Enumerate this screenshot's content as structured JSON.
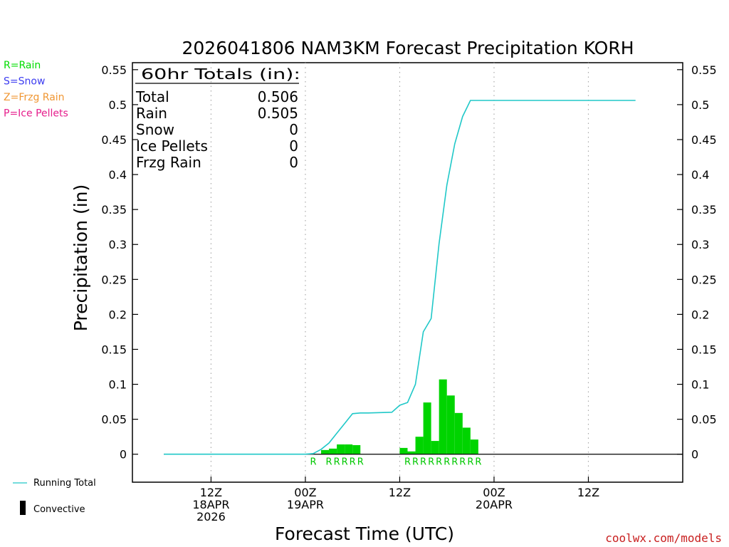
{
  "chart_data": {
    "type": "bar",
    "title": "2026041806 NAM3KM Forecast Precipitation KORH",
    "xlabel": "Forecast Time (UTC)",
    "ylabel": "Precipitation (in)",
    "ylim": [
      -0.04,
      0.56
    ],
    "yticks": [
      0,
      0.05,
      0.1,
      0.15,
      0.2,
      0.25,
      0.3,
      0.35,
      0.4,
      0.45,
      0.5,
      0.55
    ],
    "ytick_labels": [
      "0",
      "0.05",
      "0.1",
      "0.15",
      "0.2",
      "0.25",
      "0.3",
      "0.35",
      "0.4",
      "0.45",
      "0.5",
      "0.55"
    ],
    "xlim_hours": [
      -4,
      66
    ],
    "xticks": [
      {
        "hour": 6,
        "lines": [
          "12Z",
          "18APR",
          "2026"
        ]
      },
      {
        "hour": 18,
        "lines": [
          "00Z",
          "19APR"
        ]
      },
      {
        "hour": 30,
        "lines": [
          "12Z"
        ]
      },
      {
        "hour": 42,
        "lines": [
          "00Z",
          "20APR"
        ]
      },
      {
        "hour": 54,
        "lines": [
          "12Z"
        ]
      }
    ],
    "series": [
      {
        "name": "Rain (hourly)",
        "color": "#00d400",
        "x_hours": [
          20,
          21,
          22,
          23,
          24,
          30,
          31,
          32,
          33,
          34,
          35,
          36,
          37,
          38,
          39
        ],
        "values": [
          0.006,
          0.008,
          0.014,
          0.014,
          0.013,
          0.009,
          0.004,
          0.025,
          0.074,
          0.019,
          0.107,
          0.084,
          0.059,
          0.038,
          0.021
        ]
      },
      {
        "name": "Running Total",
        "color": "#20c8c8",
        "x_hours": [
          0,
          18,
          19,
          20,
          21,
          22,
          23,
          24,
          25,
          26,
          29,
          30,
          31,
          32,
          33,
          34,
          35,
          36,
          37,
          38,
          39,
          48,
          60
        ],
        "values": [
          0,
          0,
          0.001,
          0.007,
          0.016,
          0.03,
          0.044,
          0.058,
          0.059,
          0.059,
          0.06,
          0.07,
          0.074,
          0.1,
          0.175,
          0.194,
          0.301,
          0.385,
          0.444,
          0.483,
          0.506,
          0.506,
          0.506
        ]
      }
    ],
    "precip_type_markers": {
      "letter": "R",
      "x_hours": [
        19,
        21,
        22,
        23,
        24,
        25,
        31,
        32,
        33,
        34,
        35,
        36,
        37,
        38,
        39,
        40
      ]
    },
    "legend": {
      "types": [
        {
          "label": "R=Rain",
          "color": "#00dd00"
        },
        {
          "label": "S=Snow",
          "color": "#3c3cf0"
        },
        {
          "label": "Z=Frzg Rain",
          "color": "#f09632"
        },
        {
          "label": "P=Ice Pellets",
          "color": "#e61e8c"
        }
      ],
      "running_total_label": "Running Total",
      "convective_label": "Convective"
    },
    "totals_box": {
      "header": "60hr Totals (in):",
      "rows": [
        {
          "label": "Total",
          "value": "0.506"
        },
        {
          "label": "Rain",
          "value": "0.505"
        },
        {
          "label": "Snow",
          "value": "0"
        },
        {
          "label": "Ice Pellets",
          "value": "0"
        },
        {
          "label": "Frzg Rain",
          "value": "0"
        }
      ]
    },
    "credit": "coolwx.com/models"
  }
}
